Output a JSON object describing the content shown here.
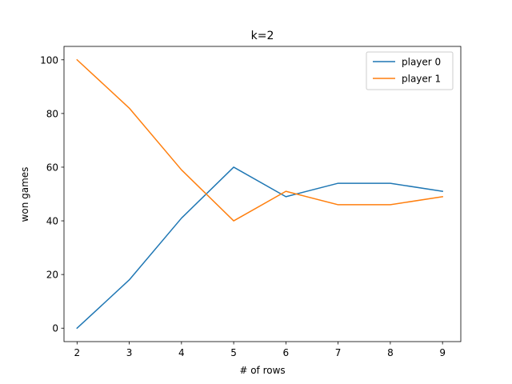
{
  "chart_data": {
    "type": "line",
    "title": "k=2",
    "xlabel": "# of rows",
    "ylabel": "won games",
    "x": [
      2,
      3,
      4,
      5,
      6,
      7,
      8,
      9
    ],
    "xlim": [
      1.75,
      9.35
    ],
    "ylim": [
      -5,
      105
    ],
    "xticks": [
      2,
      3,
      4,
      5,
      6,
      7,
      8,
      9
    ],
    "yticks": [
      0,
      20,
      40,
      60,
      80,
      100
    ],
    "grid": false,
    "legend_position": "top-right",
    "series": [
      {
        "name": "player 0",
        "color": "#1f77b4",
        "values": [
          0,
          18,
          41,
          60,
          49,
          54,
          54,
          51
        ]
      },
      {
        "name": "player 1",
        "color": "#ff7f0e",
        "values": [
          100,
          82,
          59,
          40,
          51,
          46,
          46,
          49
        ]
      }
    ]
  }
}
